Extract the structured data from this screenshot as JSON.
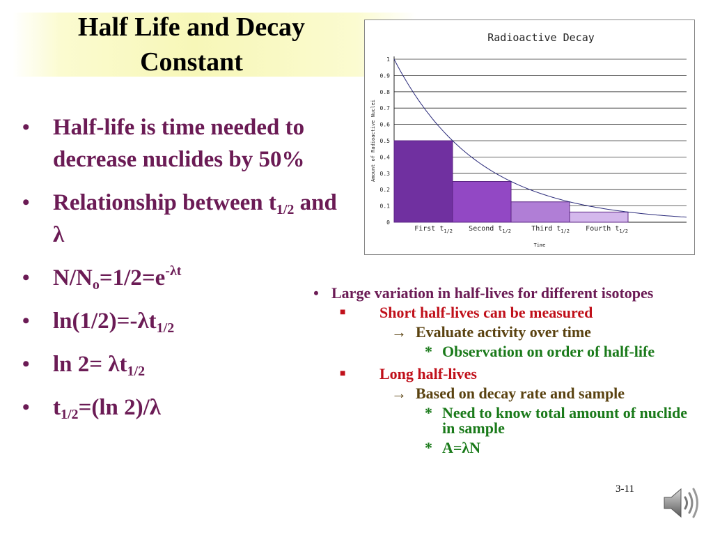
{
  "slide": {
    "title": "Half Life and Decay Constant",
    "number": "3-11"
  },
  "left_bullets": [
    {
      "parts": [
        {
          "t": "Half-life is time needed to decrease nuclides by 50%"
        }
      ]
    },
    {
      "parts": [
        {
          "t": "Relationship between t"
        },
        {
          "t": "1/2",
          "sub": true
        },
        {
          "t": " and λ"
        }
      ]
    },
    {
      "parts": [
        {
          "t": "N/N"
        },
        {
          "t": "o",
          "sub": true
        },
        {
          "t": "=1/2=e"
        },
        {
          "t": "-λt",
          "sup": true
        }
      ]
    },
    {
      "parts": [
        {
          "t": "ln(1/2)=-λt"
        },
        {
          "t": "1/2",
          "sub": true
        }
      ]
    },
    {
      "parts": [
        {
          "t": "ln 2= λt"
        },
        {
          "t": "1/2",
          "sub": true
        }
      ]
    },
    {
      "parts": [
        {
          "t": "t"
        },
        {
          "t": "1/2",
          "sub": true
        },
        {
          "t": "=(ln 2)/λ"
        }
      ]
    }
  ],
  "right_list": {
    "main": "Large variation in half-lives for different isotopes",
    "short": {
      "label": "Short half-lives can be measured",
      "sub": "Evaluate activity over time",
      "notes": [
        "Observation on order of half-life"
      ]
    },
    "long": {
      "label": "Long half-lives",
      "sub": "Based on decay rate and sample",
      "notes": [
        "Need to know total amount of nuclide in sample",
        "A=λN"
      ]
    }
  },
  "chart_data": {
    "type": "bar",
    "title": "Radioactive Decay",
    "xlabel": "Time",
    "ylabel": "Amount of Radioactive Nuclei",
    "ylim": [
      0,
      1
    ],
    "yticks": [
      0,
      0.1,
      0.2,
      0.3,
      0.4,
      0.5,
      0.6,
      0.7,
      0.8,
      0.9,
      1
    ],
    "grid": true,
    "categories": [
      {
        "word": "First",
        "sub": "1/2"
      },
      {
        "word": "Second",
        "sub": "1/2"
      },
      {
        "word": "Third",
        "sub": "1/2"
      },
      {
        "word": "Fourth",
        "sub": "1/2"
      }
    ],
    "values": [
      0.5,
      0.25,
      0.125,
      0.0625
    ],
    "bar_colors": [
      "#7030a0",
      "#9248c4",
      "#b07ed6",
      "#d4b8ec"
    ],
    "curve": {
      "type": "exponential-decay",
      "start": 1,
      "half_life_periods": 1,
      "color": "#2a2a7a"
    }
  },
  "colors": {
    "title_band": "#f7f7b8",
    "purple_text": "#6b1b55",
    "red_text": "#c0101a",
    "brown_text": "#5a4210",
    "green_text": "#1a7a1a"
  },
  "icons": {
    "speaker": "speaker-icon"
  }
}
